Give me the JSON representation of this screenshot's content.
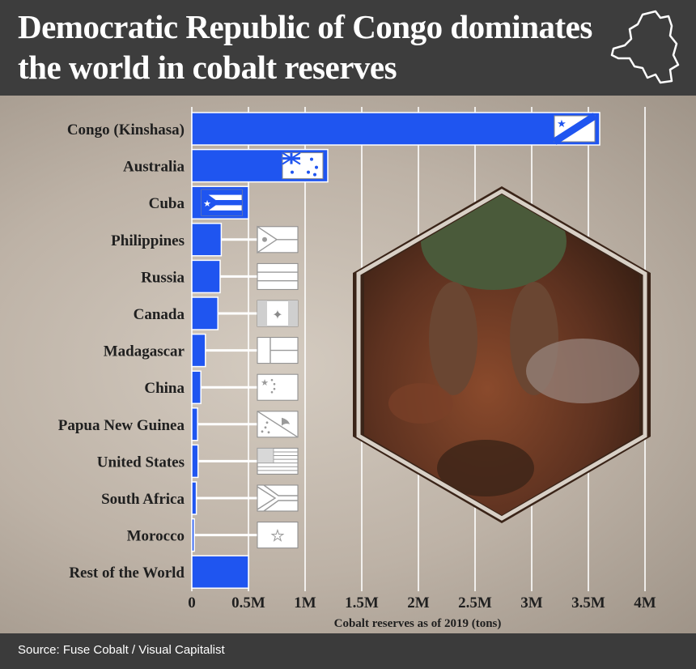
{
  "header": {
    "title": "Democratic Republic of Congo dominates the world in cobalt reserves"
  },
  "footer": {
    "source": "Source:  Fuse Cobalt / Visual Capitalist"
  },
  "colors": {
    "bar": "#1f55f0",
    "header": "#3d3d3d",
    "text": "#1f1f1f"
  },
  "chart_data": {
    "type": "bar",
    "orientation": "horizontal",
    "categories": [
      "Congo (Kinshasa)",
      "Australia",
      "Cuba",
      "Philippines",
      "Russia",
      "Canada",
      "Madagascar",
      "China",
      "Papua New Guinea",
      "United States",
      "South Africa",
      "Morocco",
      "Rest of the World"
    ],
    "values": [
      3600000,
      1200000,
      500000,
      260000,
      250000,
      230000,
      120000,
      80000,
      51000,
      55000,
      40000,
      22000,
      500000
    ],
    "flags": [
      "drc-flag-icon",
      "australia-flag-icon",
      "cuba-flag-icon",
      "philippines-flag-icon",
      "russia-flag-icon",
      "canada-flag-icon",
      "madagascar-flag-icon",
      "china-flag-icon",
      "png-flag-icon",
      "usa-flag-icon",
      "south-africa-flag-icon",
      "morocco-flag-icon",
      ""
    ],
    "xlim": [
      0,
      4000000
    ],
    "xticks": [
      0,
      500000,
      1000000,
      1500000,
      2000000,
      2500000,
      3000000,
      3500000,
      4000000
    ],
    "xtick_labels": [
      "0",
      "0.5M",
      "1M",
      "1.5M",
      "2M",
      "2.5M",
      "3M",
      "3.5M",
      "4M"
    ],
    "xlabel": "Cobalt reserves as of 2019 (tons)",
    "grid": true
  }
}
